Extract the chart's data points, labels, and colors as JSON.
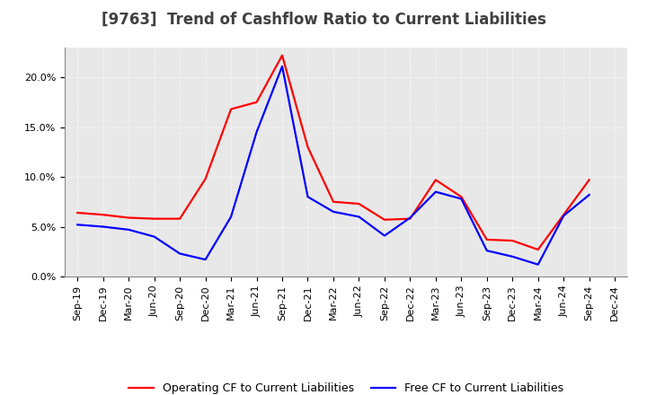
{
  "title": "[9763]  Trend of Cashflow Ratio to Current Liabilities",
  "x_labels": [
    "Sep-19",
    "Dec-19",
    "Mar-20",
    "Jun-20",
    "Sep-20",
    "Dec-20",
    "Mar-21",
    "Jun-21",
    "Sep-21",
    "Dec-21",
    "Mar-22",
    "Jun-22",
    "Sep-22",
    "Dec-22",
    "Mar-23",
    "Jun-23",
    "Sep-23",
    "Dec-23",
    "Mar-24",
    "Jun-24",
    "Sep-24",
    "Dec-24"
  ],
  "operating_cf": [
    6.4,
    6.2,
    5.9,
    5.8,
    5.8,
    9.8,
    16.8,
    17.5,
    22.2,
    13.0,
    7.5,
    7.3,
    5.7,
    5.8,
    9.7,
    8.0,
    3.7,
    3.6,
    2.7,
    6.2,
    9.7,
    null
  ],
  "free_cf": [
    5.2,
    5.0,
    4.7,
    4.0,
    2.3,
    1.7,
    6.0,
    14.5,
    21.1,
    8.0,
    6.5,
    6.0,
    4.1,
    5.9,
    8.5,
    7.8,
    2.6,
    2.0,
    1.2,
    6.1,
    8.2,
    null
  ],
  "operating_color": "#FF0000",
  "free_color": "#0000FF",
  "background_color": "#FFFFFF",
  "plot_bg_color": "#E8E8E8",
  "grid_color": "#FFFFFF",
  "ylim": [
    0,
    23
  ],
  "yticks": [
    0,
    5,
    10,
    15,
    20
  ],
  "ytick_labels": [
    "0.0%",
    "5.0%",
    "10.0%",
    "15.0%",
    "20.0%"
  ],
  "legend_op": "Operating CF to Current Liabilities",
  "legend_free": "Free CF to Current Liabilities",
  "title_fontsize": 12,
  "tick_fontsize": 8,
  "legend_fontsize": 9,
  "line_width": 1.6,
  "title_color": "#404040"
}
